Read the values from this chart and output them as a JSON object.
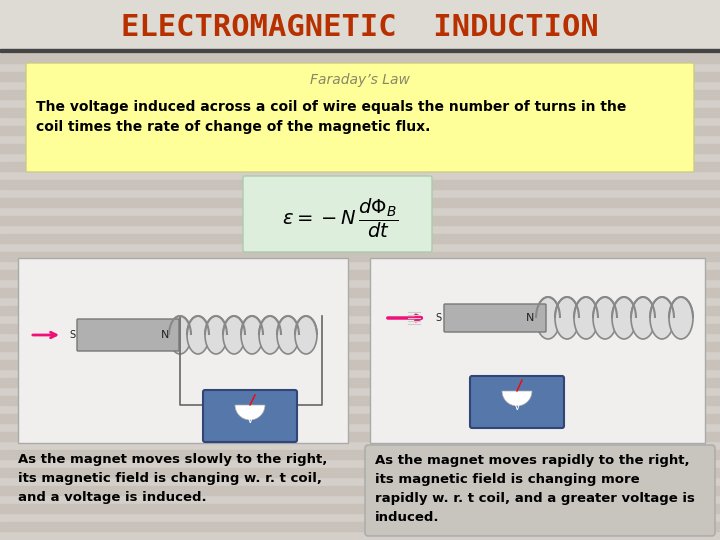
{
  "title": "ELECTROMAGNETIC  INDUCTION",
  "title_color": "#b83000",
  "title_bg": "#dedad4",
  "title_fontsize": 22,
  "bg_color": "#d4cfc8",
  "stripe_color": "#c8c2ba",
  "faraday_box_color": "#ffff99",
  "faraday_box_edge": "#cccc88",
  "faraday_title": "Faraday’s Law",
  "faraday_title_color": "#888866",
  "faraday_text_line1": "The voltage induced across a coil of wire equals the number of turns in the",
  "faraday_text_line2": "coil times the rate of change of the magnetic flux.",
  "faraday_text_color": "#000000",
  "formula_box_color": "#ddeedd",
  "formula_box_edge": "#aaccaa",
  "caption_left_lines": [
    "As the magnet moves slowly to the right,",
    "its magnetic field is changing w. r. t coil,",
    "and a voltage is induced."
  ],
  "caption_right_lines": [
    "As the magnet moves rapidly to the right,",
    "its magnetic field is changing more",
    "rapidly w. r. t coil, and a greater voltage is",
    "induced."
  ],
  "caption_color": "#000000",
  "caption_fontsize": 9.5,
  "caption_right_box_color": "#c8c4be",
  "caption_right_box_edge": "#aaaaaa",
  "img_box_color": "#f0efed",
  "img_box_edge": "#aaaaaa"
}
